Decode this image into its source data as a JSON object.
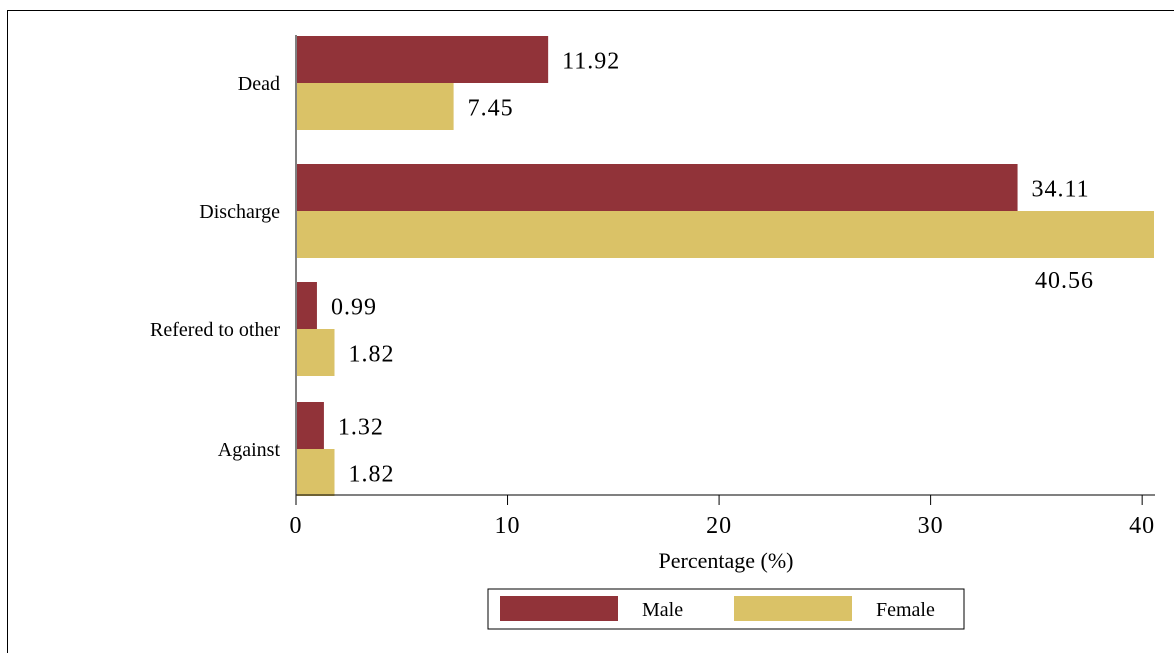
{
  "chart_data": {
    "type": "bar",
    "orientation": "horizontal",
    "categories": [
      "Dead",
      "Discharge",
      "Refered to other",
      "Against"
    ],
    "series": [
      {
        "name": "Male",
        "values": [
          11.92,
          34.11,
          0.99,
          1.32
        ],
        "color": "#913339",
        "labels": [
          "11.92",
          "34.11",
          "0.99",
          "1.32"
        ]
      },
      {
        "name": "Female",
        "values": [
          7.45,
          40.56,
          1.82,
          1.82
        ],
        "color": "#dac267",
        "labels": [
          "7.45",
          "40.56",
          "1.82",
          "1.82"
        ]
      }
    ],
    "xlabel": "Percentage (%)",
    "ylabel": "",
    "xlim": [
      0,
      40.56
    ],
    "xticks": [
      0,
      10,
      20,
      30,
      40
    ],
    "grid": false,
    "legend": "bottom"
  }
}
